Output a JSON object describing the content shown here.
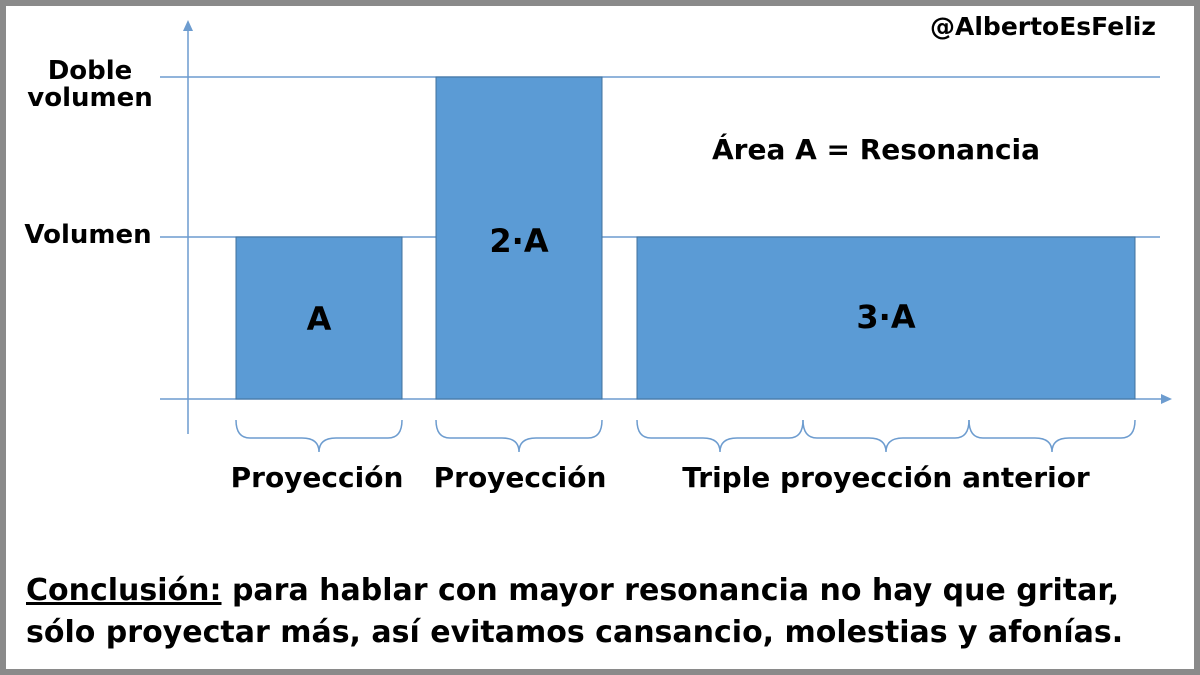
{
  "handle": "@AlbertoEsFeliz",
  "y_labels": {
    "double": [
      "Doble",
      "volumen"
    ],
    "single": "Volumen"
  },
  "note": "Área A = Resonancia",
  "bars": [
    {
      "label": "A",
      "category": "Proyección",
      "width_units": 1,
      "height_units": 1
    },
    {
      "label": "2·A",
      "category": "Proyección",
      "width_units": 1,
      "height_units": 2
    },
    {
      "label": "3·A",
      "category": "Triple proyección anterior",
      "width_units": 3,
      "height_units": 1
    }
  ],
  "conclusion": {
    "lead": "Conclusión:",
    "text": " para hablar con mayor resonancia no hay que gritar, sólo proyectar más, así evitamos cansancio, molestias y afonías."
  },
  "colors": {
    "bar_fill": "#5b9bd5",
    "bar_stroke": "#41719c",
    "axis": "#6d9ccf",
    "frame": "#8a8a8a"
  }
}
